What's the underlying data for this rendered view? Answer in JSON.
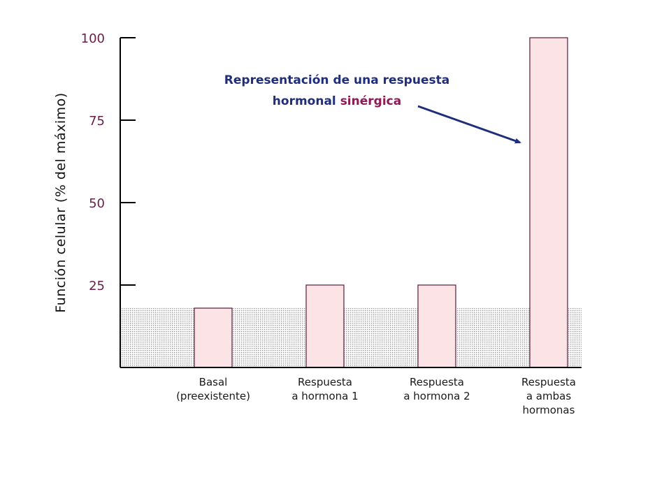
{
  "chart_data": {
    "type": "bar",
    "ylabel": "Función celular (% del máximo)",
    "ylim": [
      0,
      100
    ],
    "yticks": [
      25,
      50,
      75,
      100
    ],
    "baseline_level": 18,
    "categories": [
      [
        "Basal",
        "(preexistente)"
      ],
      [
        "Respuesta",
        "a hormona 1"
      ],
      [
        "Respuesta",
        "a hormona 2"
      ],
      [
        "Respuesta",
        "a ambas",
        "hormonas"
      ]
    ],
    "values": [
      18,
      25,
      25,
      100
    ],
    "annotation": {
      "line1": "Representación de una respuesta",
      "line2_prefix": "hormonal ",
      "line2_highlight": "sinérgica",
      "points_to_category": 3
    },
    "colors": {
      "bar_fill": "#fbe3e6",
      "bar_stroke": "#5a1a3a",
      "baseline_dots": "#a8a8a8",
      "axis": "#000000",
      "arrow": "#1f2e7a",
      "tick_text": "#6b1d4a"
    }
  }
}
